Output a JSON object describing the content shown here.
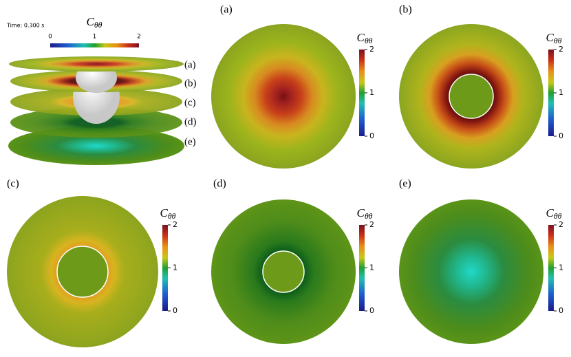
{
  "overview": {
    "time_label": "Time: 0.300 s",
    "colorbar": {
      "title": {
        "symbol": "C",
        "subscript": "θθ"
      },
      "ticks": [
        0,
        1,
        2
      ]
    },
    "layer_labels": [
      "(a)",
      "(b)",
      "(c)",
      "(d)",
      "(e)"
    ]
  },
  "panels": [
    {
      "label": "(a)",
      "colorbar": {
        "title": {
          "symbol": "C",
          "subscript": "θθ"
        },
        "ticks": [
          0,
          1,
          2
        ]
      }
    },
    {
      "label": "(b)",
      "colorbar": {
        "title": {
          "symbol": "C",
          "subscript": "θθ"
        },
        "ticks": [
          0,
          1,
          2
        ]
      }
    },
    {
      "label": "(c)",
      "colorbar": {
        "title": {
          "symbol": "C",
          "subscript": "θθ"
        },
        "ticks": [
          0,
          1,
          2
        ]
      }
    },
    {
      "label": "(d)",
      "colorbar": {
        "title": {
          "symbol": "C",
          "subscript": "θθ"
        },
        "ticks": [
          0,
          1,
          2
        ]
      }
    },
    {
      "label": "(e)",
      "colorbar": {
        "title": {
          "symbol": "C",
          "subscript": "θθ"
        },
        "ticks": [
          0,
          1,
          2
        ]
      }
    }
  ]
}
